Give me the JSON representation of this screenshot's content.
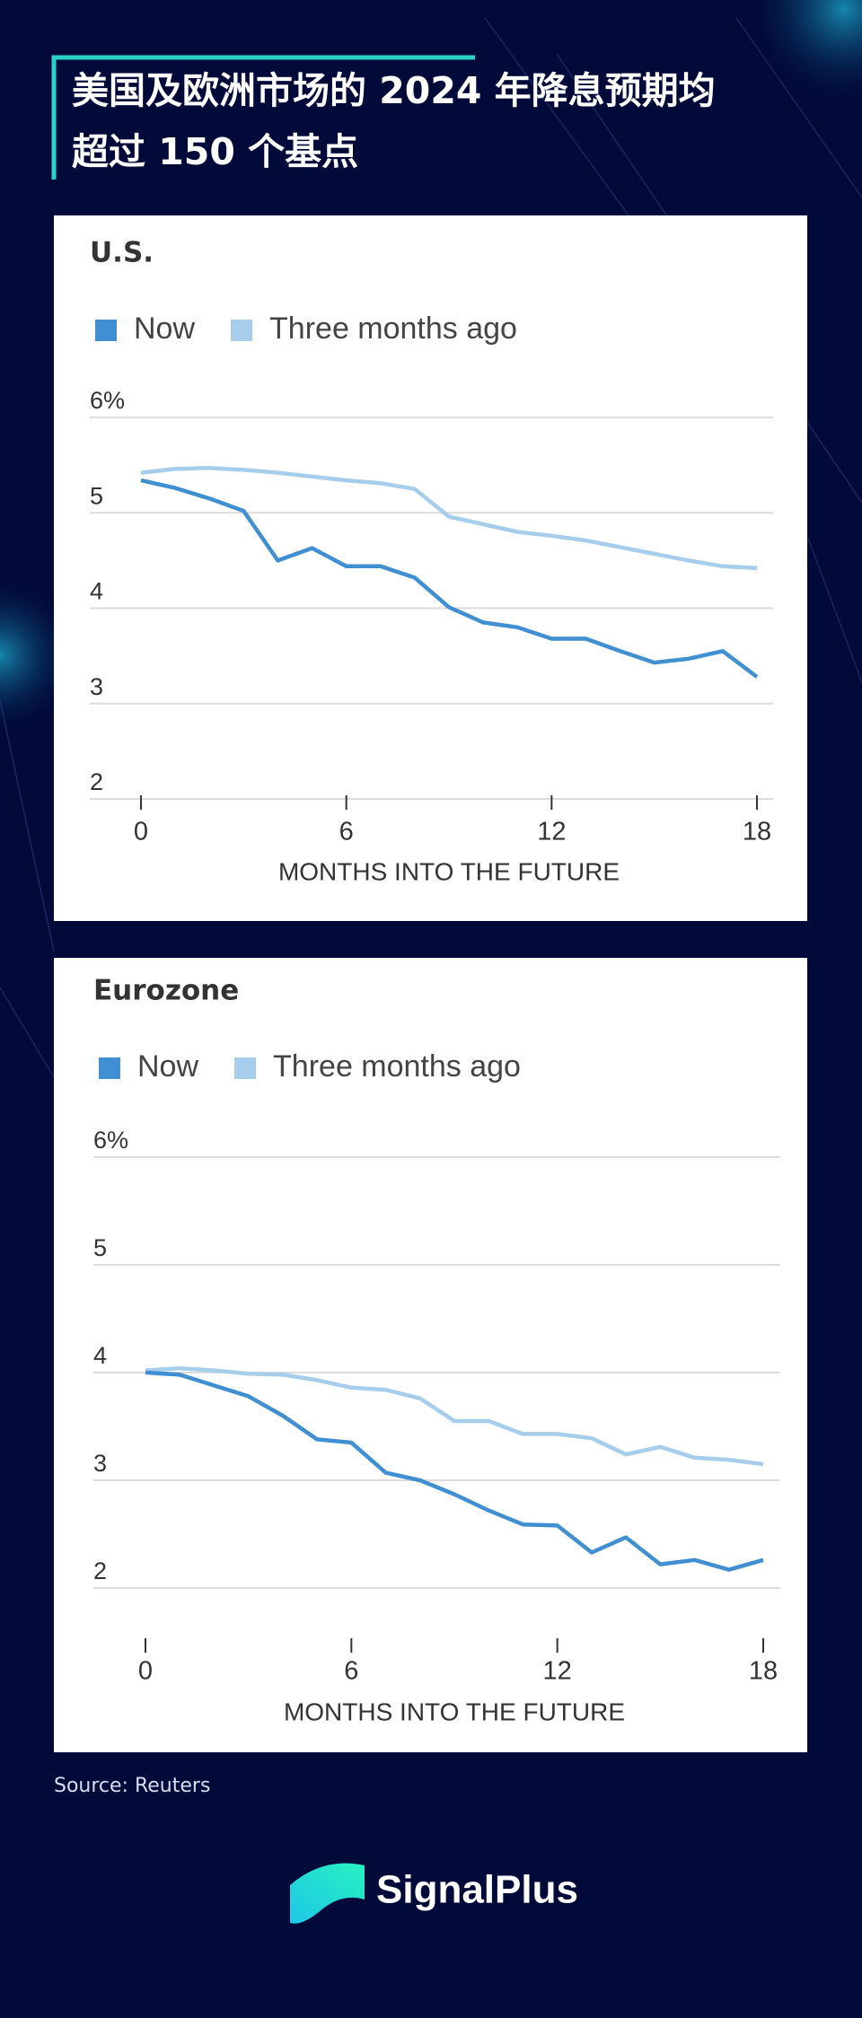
{
  "header": {
    "title": [
      "美国及欧洲市场的 2024 年降息预期均",
      "超过 150 个基点"
    ]
  },
  "source": "Source: Reuters",
  "brand": "SignalPlus",
  "chart_data": [
    {
      "type": "line",
      "title": "U.S.",
      "x_label": "MONTHS INTO THE FUTURE",
      "x": [
        0,
        1,
        2,
        3,
        4,
        5,
        6,
        7,
        8,
        9,
        10,
        11,
        12,
        13,
        14,
        15,
        16,
        17,
        18
      ],
      "xlim": [
        0,
        18
      ],
      "xticks": [
        0,
        6,
        12,
        18
      ],
      "ylim": [
        2,
        6
      ],
      "yticks": [
        2,
        3,
        4,
        5,
        {
          "value": 6,
          "label": "6%"
        }
      ],
      "grid": true,
      "legend": "top-left",
      "series": [
        {
          "name": "Now",
          "color": "#3f8fd2",
          "values": [
            5.34,
            5.26,
            5.15,
            5.02,
            4.5,
            4.63,
            4.44,
            4.44,
            4.32,
            4.01,
            3.85,
            3.8,
            3.68,
            3.68,
            3.55,
            3.43,
            3.47,
            3.55,
            3.28
          ]
        },
        {
          "name": "Three months ago",
          "color": "#a6cdec",
          "values": [
            5.42,
            5.46,
            5.47,
            5.45,
            5.42,
            5.38,
            5.34,
            5.31,
            5.25,
            4.96,
            4.88,
            4.8,
            4.76,
            4.71,
            4.64,
            4.57,
            4.5,
            4.44,
            4.42
          ]
        }
      ]
    },
    {
      "type": "line",
      "title": "Eurozone",
      "x_label": "MONTHS INTO THE FUTURE",
      "x": [
        0,
        1,
        2,
        3,
        4,
        5,
        6,
        7,
        8,
        9,
        10,
        11,
        12,
        13,
        14,
        15,
        16,
        17,
        18
      ],
      "xlim": [
        0,
        18
      ],
      "xticks": [
        0,
        6,
        12,
        18
      ],
      "ylim": [
        1.5,
        6
      ],
      "yticks": [
        2,
        3,
        4,
        5,
        {
          "value": 6,
          "label": "6%"
        }
      ],
      "grid": true,
      "legend": "top-left",
      "series": [
        {
          "name": "Now",
          "color": "#3f8fd2",
          "values": [
            4.0,
            3.98,
            3.88,
            3.78,
            3.6,
            3.38,
            3.35,
            3.07,
            3.0,
            2.87,
            2.72,
            2.59,
            2.58,
            2.33,
            2.47,
            2.22,
            2.26,
            2.17,
            2.26
          ]
        },
        {
          "name": "Three months ago",
          "color": "#a6cdec",
          "values": [
            4.02,
            4.04,
            4.02,
            3.99,
            3.98,
            3.93,
            3.86,
            3.84,
            3.76,
            3.55,
            3.55,
            3.43,
            3.43,
            3.39,
            3.24,
            3.31,
            3.21,
            3.19,
            3.15
          ]
        }
      ]
    }
  ]
}
